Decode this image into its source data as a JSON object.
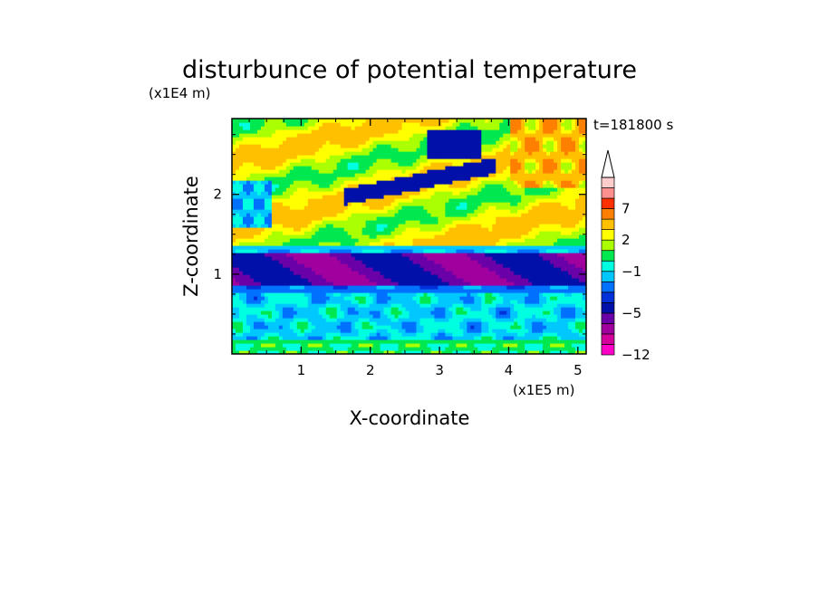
{
  "chart_data": {
    "type": "heatmap",
    "title": "disturbunce of potential temperature",
    "xlabel": "X-coordinate",
    "ylabel": "Z-coordinate",
    "x_unit": "(x1E5 m)",
    "y_unit": "(x1E4 m)",
    "time_label": "t=181800 s",
    "xlim": [
      0,
      5.12
    ],
    "ylim": [
      0,
      2.95
    ],
    "x_ticks": [
      {
        "value": 1,
        "label": "1"
      },
      {
        "value": 2,
        "label": "2"
      },
      {
        "value": 3,
        "label": "3"
      },
      {
        "value": 4,
        "label": "4"
      },
      {
        "value": 5,
        "label": "5"
      }
    ],
    "y_ticks": [
      {
        "value": 1,
        "label": "1"
      },
      {
        "value": 2,
        "label": "2"
      }
    ],
    "colorbar": {
      "levels": [
        -12,
        -10,
        -8,
        -6,
        -5,
        -4,
        -3,
        -2,
        -1,
        0,
        1,
        2,
        3,
        5,
        7,
        9,
        11
      ],
      "colors": [
        "#ff00c8",
        "#d4009c",
        "#a0009e",
        "#6a00a8",
        "#0010a8",
        "#0030d8",
        "#0070ff",
        "#00c8ff",
        "#00ffe0",
        "#00e850",
        "#aaff00",
        "#ffff00",
        "#ffc000",
        "#ff8000",
        "#ff3000",
        "#ff9090",
        "#ffcccc"
      ],
      "tick_labels": [
        {
          "value": -12,
          "label": "−12"
        },
        {
          "value": -5,
          "label": "−5"
        },
        {
          "value": -1,
          "label": "−1"
        },
        {
          "value": 2,
          "label": "2"
        },
        {
          "value": 7,
          "label": "7"
        }
      ],
      "extend_max": true
    },
    "bands": [
      {
        "z": [
          0.0,
          0.75
        ],
        "category": "cyan-green mix"
      },
      {
        "z": [
          0.75,
          1.25
        ],
        "category": "dark blue"
      },
      {
        "z": [
          1.25,
          2.95
        ],
        "category": "warm upper layer"
      }
    ],
    "grid": false
  }
}
